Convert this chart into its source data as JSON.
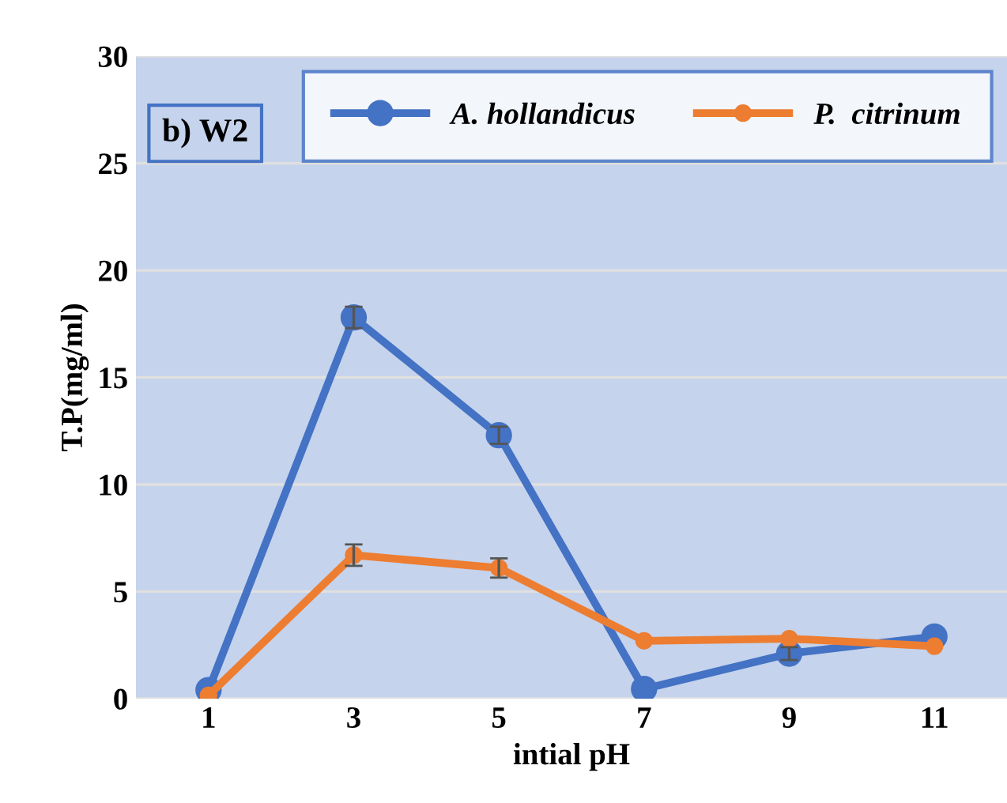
{
  "chart_data": {
    "type": "line",
    "xlabel": "intial pH",
    "ylabel": "T.P(mg/ml)",
    "annotations": [
      "b) W2"
    ],
    "categories": [
      "1",
      "3",
      "5",
      "7",
      "9",
      "11"
    ],
    "series": [
      {
        "name": "A. hollandicus",
        "color": "#4472c4",
        "values": [
          0.4,
          17.8,
          12.3,
          0.45,
          2.1,
          2.9
        ],
        "errors": [
          null,
          0.5,
          0.4,
          null,
          0.3,
          null
        ]
      },
      {
        "name": "P.  citrinum",
        "color": "#ed7d31",
        "values": [
          0.15,
          6.7,
          6.1,
          2.7,
          2.8,
          2.45
        ],
        "errors": [
          null,
          0.5,
          0.45,
          null,
          null,
          null
        ]
      }
    ],
    "ylim": [
      0,
      30
    ],
    "yticks": [
      0,
      5,
      10,
      15,
      20,
      25,
      30
    ],
    "grid": "y",
    "legend": "top right",
    "marker": "circle",
    "line_style": "solid"
  }
}
